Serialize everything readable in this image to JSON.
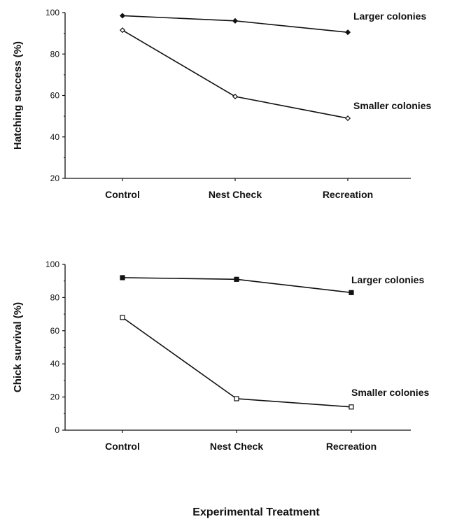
{
  "chart_data": [
    {
      "type": "line",
      "xlabel": "",
      "ylabel": "Hatching success (%)",
      "categories": [
        "Control",
        "Nest Check",
        "Recreation"
      ],
      "ylim": [
        20,
        100
      ],
      "yticks": [
        20,
        40,
        60,
        80,
        100
      ],
      "grid": false,
      "series": [
        {
          "name": "Larger colonies",
          "marker": "filled-diamond",
          "values": [
            98.5,
            96,
            90.5
          ]
        },
        {
          "name": "Smaller colonies",
          "marker": "open-diamond",
          "values": [
            91.5,
            59.5,
            49
          ]
        }
      ]
    },
    {
      "type": "line",
      "xlabel": "",
      "ylabel": "Chick survival (%)",
      "categories": [
        "Control",
        "Nest Check",
        "Recreation"
      ],
      "ylim": [
        0,
        100
      ],
      "yticks": [
        0,
        20,
        40,
        60,
        80,
        100
      ],
      "grid": false,
      "series": [
        {
          "name": "Larger colonies",
          "marker": "filled-square",
          "values": [
            92,
            91,
            83
          ]
        },
        {
          "name": "Smaller colonies",
          "marker": "open-square",
          "values": [
            68,
            19,
            14
          ]
        }
      ]
    }
  ],
  "shared_xlabel": "Experimental Treatment"
}
